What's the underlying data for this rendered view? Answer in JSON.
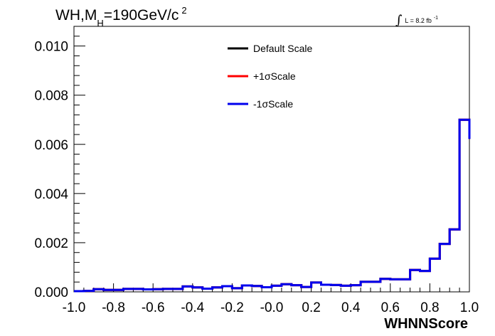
{
  "chart_data": {
    "type": "line",
    "title": {
      "main": "WH,M",
      "subscript": "H",
      "rest": "=190GeV/c",
      "superscript": "2"
    },
    "lumi": {
      "symbol": "∫",
      "text": "L = 8.2 fb",
      "superscript": "-1"
    },
    "xlabel": "WHNNScore",
    "ylabel": "",
    "xlim": [
      -1.0,
      1.0
    ],
    "ylim": [
      0.0,
      0.0108
    ],
    "x_ticks": [
      "-1.0",
      "-0.8",
      "-0.6",
      "-0.4",
      "-0.2",
      "-0.0",
      "0.2",
      "0.4",
      "0.6",
      "0.8",
      "1.0"
    ],
    "y_ticks": [
      "0.000",
      "0.002",
      "0.004",
      "0.006",
      "0.008",
      "0.010"
    ],
    "bin_edges": [
      -1.0,
      -0.95,
      -0.9,
      -0.85,
      -0.8,
      -0.75,
      -0.7,
      -0.65,
      -0.6,
      -0.55,
      -0.5,
      -0.45,
      -0.4,
      -0.35,
      -0.3,
      -0.25,
      -0.2,
      -0.15,
      -0.1,
      -0.05,
      0.0,
      0.05,
      0.1,
      0.15,
      0.2,
      0.25,
      0.3,
      0.35,
      0.4,
      0.45,
      0.5,
      0.55,
      0.6,
      0.65,
      0.7,
      0.75,
      0.8,
      0.85,
      0.9,
      0.95,
      1.0
    ],
    "series": [
      {
        "name": "Default Scale",
        "color": "#000000",
        "values": [
          3e-05,
          4e-05,
          0.00011,
          8e-05,
          8e-05,
          0.00012,
          0.00012,
          0.0001,
          0.00011,
          0.00012,
          0.00012,
          0.00022,
          0.00018,
          0.00013,
          0.00018,
          0.00023,
          0.00015,
          0.00026,
          0.00024,
          0.00019,
          0.00025,
          0.00031,
          0.00027,
          0.0002,
          0.00038,
          0.00029,
          0.00028,
          0.00025,
          0.00027,
          0.00041,
          0.00041,
          0.00053,
          0.00051,
          0.00051,
          0.00089,
          0.00085,
          0.00135,
          0.00195,
          0.00254,
          0.007,
          0.00622
        ]
      },
      {
        "name": "+1σScale",
        "color": "#ff0000",
        "values": [
          3e-05,
          4e-05,
          0.00011,
          8e-05,
          8e-05,
          0.00012,
          0.00012,
          0.0001,
          0.00011,
          0.00012,
          0.00012,
          0.00022,
          0.00018,
          0.00013,
          0.00018,
          0.00023,
          0.00015,
          0.00026,
          0.00024,
          0.00019,
          0.00025,
          0.00031,
          0.00027,
          0.0002,
          0.00038,
          0.00029,
          0.00028,
          0.00025,
          0.00027,
          0.00041,
          0.00041,
          0.00053,
          0.00051,
          0.00051,
          0.00089,
          0.00085,
          0.00135,
          0.00195,
          0.00254,
          0.007,
          0.00622
        ]
      },
      {
        "name": "-1σScale",
        "color": "#0000ee",
        "values": [
          3e-05,
          4e-05,
          0.00011,
          8e-05,
          8e-05,
          0.00012,
          0.00012,
          0.0001,
          0.00011,
          0.00012,
          0.00012,
          0.00022,
          0.00018,
          0.00013,
          0.00018,
          0.00023,
          0.00015,
          0.00026,
          0.00024,
          0.00019,
          0.00025,
          0.00031,
          0.00027,
          0.0002,
          0.00038,
          0.00029,
          0.00028,
          0.00025,
          0.00027,
          0.00041,
          0.00041,
          0.00053,
          0.00051,
          0.00051,
          0.00089,
          0.00085,
          0.00135,
          0.00195,
          0.00254,
          0.007,
          0.00622
        ]
      }
    ],
    "legend_position": "top-center",
    "grid": false
  }
}
